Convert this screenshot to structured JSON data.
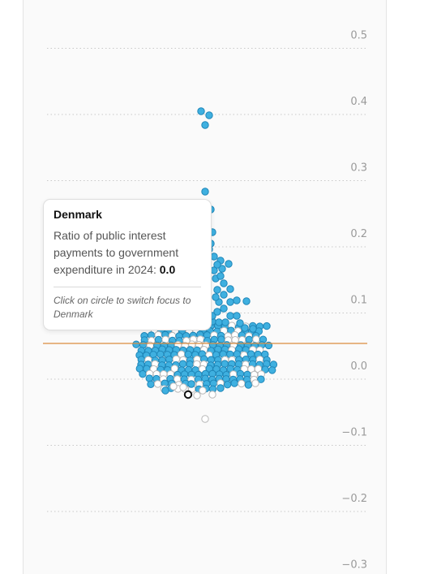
{
  "colors": {
    "filled": "#3fb0e0",
    "filled_stroke": "#1f86b8",
    "hollow_stroke": "#b9b9b9",
    "focus_stroke": "#111111",
    "refline": "#d98c3f",
    "grid": "#c8c8c8"
  },
  "tooltip": {
    "title": "Denmark",
    "text": "Ratio of public interest payments to government expenditure in 2024:",
    "value": "0.0",
    "hint": "Click on circle to switch focus to Denmark"
  },
  "chart_data": {
    "type": "scatter",
    "title": "",
    "xlabel": "",
    "ylabel": "",
    "ylim": [
      -0.3,
      0.5
    ],
    "grid": true,
    "y_ticks": [
      {
        "value": 0.5,
        "label": "0.5"
      },
      {
        "value": 0.4,
        "label": "0.4"
      },
      {
        "value": 0.3,
        "label": "0.3"
      },
      {
        "value": 0.2,
        "label": "0.2"
      },
      {
        "value": 0.1,
        "label": "0.1"
      },
      {
        "value": 0.0,
        "label": "0.0"
      },
      {
        "value": -0.1,
        "label": "−0.1"
      },
      {
        "value": -0.2,
        "label": "−0.2"
      },
      {
        "value": -0.3,
        "label": "−0.3"
      }
    ],
    "reference_line": 0.055,
    "focus_value": -0.035,
    "outliers": [
      -0.07,
      0.39,
      0.41,
      0.4,
      0.28,
      0.26,
      0.22
    ],
    "beeswarm": {
      "count_filled": 190,
      "count_hollow": 60
    }
  }
}
